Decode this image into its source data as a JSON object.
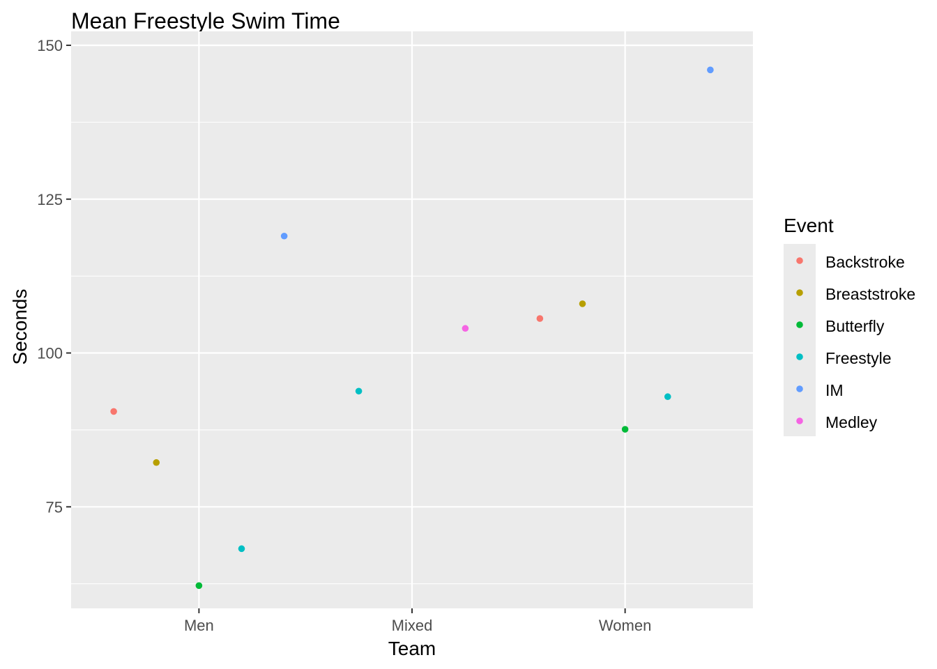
{
  "chart_data": {
    "type": "scatter",
    "title": "Mean Freestyle Swim Time",
    "xlabel": "Team",
    "ylabel": "Seconds",
    "categories": [
      "Men",
      "Mixed",
      "Women"
    ],
    "ylim": [
      58.5,
      150
    ],
    "y_ticks": [
      75,
      100,
      125,
      150
    ],
    "grid": true,
    "legend_position": "right",
    "legend_title": "Event",
    "series": [
      {
        "name": "Backstroke",
        "color": "#F8766D",
        "points": [
          {
            "x": 0.6,
            "y": 90.5
          },
          {
            "x": 2.6,
            "y": 105.6
          }
        ]
      },
      {
        "name": "Breaststroke",
        "color": "#B79F00",
        "points": [
          {
            "x": 0.8,
            "y": 82.2
          },
          {
            "x": 2.8,
            "y": 108.0
          }
        ]
      },
      {
        "name": "Butterfly",
        "color": "#00BA38",
        "points": [
          {
            "x": 1.0,
            "y": 62.2
          },
          {
            "x": 3.0,
            "y": 87.6
          }
        ]
      },
      {
        "name": "Freestyle",
        "color": "#00BFC4",
        "points": [
          {
            "x": 1.2,
            "y": 68.2
          },
          {
            "x": 1.75,
            "y": 93.8
          },
          {
            "x": 3.2,
            "y": 92.9
          }
        ]
      },
      {
        "name": "IM",
        "color": "#619CFF",
        "points": [
          {
            "x": 1.4,
            "y": 119.0
          },
          {
            "x": 3.4,
            "y": 146.0
          }
        ]
      },
      {
        "name": "Medley",
        "color": "#F564E3",
        "points": [
          {
            "x": 2.25,
            "y": 104.0
          }
        ]
      }
    ]
  }
}
